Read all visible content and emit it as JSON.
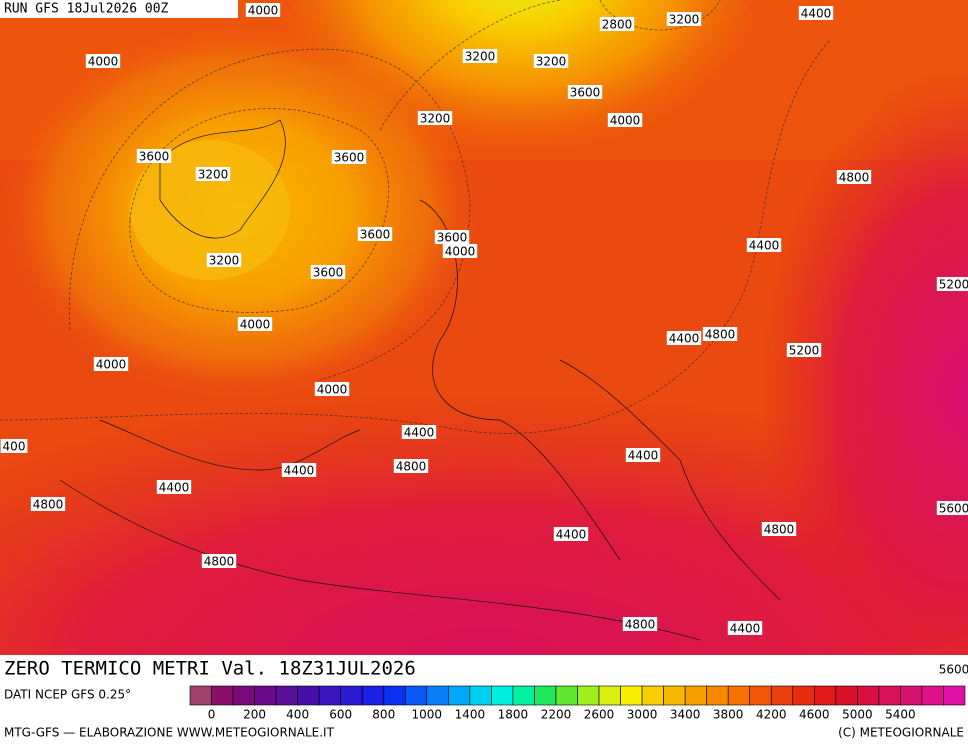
{
  "header": {
    "run": "RUN GFS 18Jul2026 00Z"
  },
  "title": "ZERO TERMICO METRI Val. 18Z31JUL2026",
  "source": "DATI NCEP GFS 0.25°",
  "credit_left": "MTG-GFS — ELABORAZIONE WWW.METEOGIORNALE.IT",
  "credit_right": "(C) METEOGIORNALE",
  "contour_labels": [
    "4000",
    "4000",
    "3200",
    "3200",
    "2800",
    "3200",
    "4400",
    "3600",
    "3200",
    "4000",
    "3600",
    "3600",
    "3200",
    "4800",
    "3600",
    "3600",
    "4000",
    "4400",
    "3200",
    "3600",
    "5200",
    "4000",
    "4400",
    "4800",
    "5200",
    "4000",
    "4000",
    "400",
    "4400",
    "4400",
    "4800",
    "4400",
    "4400",
    "4800",
    "5600",
    "4400",
    "4800",
    "4800",
    "4800",
    "4400",
    "5600"
  ],
  "colorbar": {
    "labels": [
      "0",
      "200",
      "400",
      "600",
      "800",
      "1000",
      "1400",
      "1800",
      "2200",
      "2600",
      "3000",
      "3400",
      "3800",
      "4200",
      "4600",
      "5000",
      "5400"
    ],
    "colors": [
      "#a0406f",
      "#8a0f6a",
      "#7a0a78",
      "#6a0a8a",
      "#580f9a",
      "#4810aa",
      "#3a14bc",
      "#2a1ad0",
      "#1a20e4",
      "#0a30f0",
      "#0a58f5",
      "#0a80f8",
      "#00a8f8",
      "#00d0f0",
      "#00f0e0",
      "#00f0a0",
      "#20e860",
      "#60e830",
      "#a0f020",
      "#d8f010",
      "#f8f000",
      "#f8d000",
      "#f8b800",
      "#f8a000",
      "#f88800",
      "#f87000",
      "#f05808",
      "#ec4010",
      "#e82c10",
      "#e01818",
      "#d81028",
      "#d81040",
      "#d81058",
      "#d81070",
      "#e01088",
      "#e010a8"
    ]
  }
}
